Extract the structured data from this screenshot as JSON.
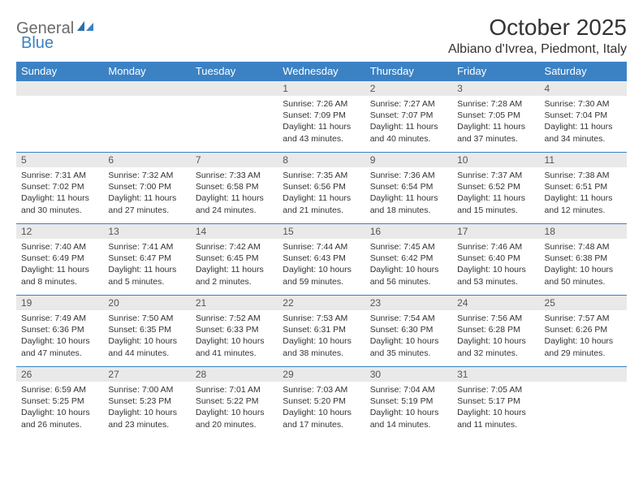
{
  "logo": {
    "part1": "General",
    "part2": "Blue"
  },
  "title": "October 2025",
  "location": "Albiano d'Ivrea, Piedmont, Italy",
  "colors": {
    "header_bg": "#3b82c4",
    "header_text": "#ffffff",
    "daynum_bg": "#e9e9e9",
    "border": "#3b82c4",
    "body_text": "#333333",
    "logo_gray": "#6a6a6a",
    "logo_blue": "#3b82c4"
  },
  "day_headers": [
    "Sunday",
    "Monday",
    "Tuesday",
    "Wednesday",
    "Thursday",
    "Friday",
    "Saturday"
  ],
  "weeks": [
    [
      {
        "num": "",
        "lines": []
      },
      {
        "num": "",
        "lines": []
      },
      {
        "num": "",
        "lines": []
      },
      {
        "num": "1",
        "lines": [
          "Sunrise: 7:26 AM",
          "Sunset: 7:09 PM",
          "Daylight: 11 hours and 43 minutes."
        ]
      },
      {
        "num": "2",
        "lines": [
          "Sunrise: 7:27 AM",
          "Sunset: 7:07 PM",
          "Daylight: 11 hours and 40 minutes."
        ]
      },
      {
        "num": "3",
        "lines": [
          "Sunrise: 7:28 AM",
          "Sunset: 7:05 PM",
          "Daylight: 11 hours and 37 minutes."
        ]
      },
      {
        "num": "4",
        "lines": [
          "Sunrise: 7:30 AM",
          "Sunset: 7:04 PM",
          "Daylight: 11 hours and 34 minutes."
        ]
      }
    ],
    [
      {
        "num": "5",
        "lines": [
          "Sunrise: 7:31 AM",
          "Sunset: 7:02 PM",
          "Daylight: 11 hours and 30 minutes."
        ]
      },
      {
        "num": "6",
        "lines": [
          "Sunrise: 7:32 AM",
          "Sunset: 7:00 PM",
          "Daylight: 11 hours and 27 minutes."
        ]
      },
      {
        "num": "7",
        "lines": [
          "Sunrise: 7:33 AM",
          "Sunset: 6:58 PM",
          "Daylight: 11 hours and 24 minutes."
        ]
      },
      {
        "num": "8",
        "lines": [
          "Sunrise: 7:35 AM",
          "Sunset: 6:56 PM",
          "Daylight: 11 hours and 21 minutes."
        ]
      },
      {
        "num": "9",
        "lines": [
          "Sunrise: 7:36 AM",
          "Sunset: 6:54 PM",
          "Daylight: 11 hours and 18 minutes."
        ]
      },
      {
        "num": "10",
        "lines": [
          "Sunrise: 7:37 AM",
          "Sunset: 6:52 PM",
          "Daylight: 11 hours and 15 minutes."
        ]
      },
      {
        "num": "11",
        "lines": [
          "Sunrise: 7:38 AM",
          "Sunset: 6:51 PM",
          "Daylight: 11 hours and 12 minutes."
        ]
      }
    ],
    [
      {
        "num": "12",
        "lines": [
          "Sunrise: 7:40 AM",
          "Sunset: 6:49 PM",
          "Daylight: 11 hours and 8 minutes."
        ]
      },
      {
        "num": "13",
        "lines": [
          "Sunrise: 7:41 AM",
          "Sunset: 6:47 PM",
          "Daylight: 11 hours and 5 minutes."
        ]
      },
      {
        "num": "14",
        "lines": [
          "Sunrise: 7:42 AM",
          "Sunset: 6:45 PM",
          "Daylight: 11 hours and 2 minutes."
        ]
      },
      {
        "num": "15",
        "lines": [
          "Sunrise: 7:44 AM",
          "Sunset: 6:43 PM",
          "Daylight: 10 hours and 59 minutes."
        ]
      },
      {
        "num": "16",
        "lines": [
          "Sunrise: 7:45 AM",
          "Sunset: 6:42 PM",
          "Daylight: 10 hours and 56 minutes."
        ]
      },
      {
        "num": "17",
        "lines": [
          "Sunrise: 7:46 AM",
          "Sunset: 6:40 PM",
          "Daylight: 10 hours and 53 minutes."
        ]
      },
      {
        "num": "18",
        "lines": [
          "Sunrise: 7:48 AM",
          "Sunset: 6:38 PM",
          "Daylight: 10 hours and 50 minutes."
        ]
      }
    ],
    [
      {
        "num": "19",
        "lines": [
          "Sunrise: 7:49 AM",
          "Sunset: 6:36 PM",
          "Daylight: 10 hours and 47 minutes."
        ]
      },
      {
        "num": "20",
        "lines": [
          "Sunrise: 7:50 AM",
          "Sunset: 6:35 PM",
          "Daylight: 10 hours and 44 minutes."
        ]
      },
      {
        "num": "21",
        "lines": [
          "Sunrise: 7:52 AM",
          "Sunset: 6:33 PM",
          "Daylight: 10 hours and 41 minutes."
        ]
      },
      {
        "num": "22",
        "lines": [
          "Sunrise: 7:53 AM",
          "Sunset: 6:31 PM",
          "Daylight: 10 hours and 38 minutes."
        ]
      },
      {
        "num": "23",
        "lines": [
          "Sunrise: 7:54 AM",
          "Sunset: 6:30 PM",
          "Daylight: 10 hours and 35 minutes."
        ]
      },
      {
        "num": "24",
        "lines": [
          "Sunrise: 7:56 AM",
          "Sunset: 6:28 PM",
          "Daylight: 10 hours and 32 minutes."
        ]
      },
      {
        "num": "25",
        "lines": [
          "Sunrise: 7:57 AM",
          "Sunset: 6:26 PM",
          "Daylight: 10 hours and 29 minutes."
        ]
      }
    ],
    [
      {
        "num": "26",
        "lines": [
          "Sunrise: 6:59 AM",
          "Sunset: 5:25 PM",
          "Daylight: 10 hours and 26 minutes."
        ]
      },
      {
        "num": "27",
        "lines": [
          "Sunrise: 7:00 AM",
          "Sunset: 5:23 PM",
          "Daylight: 10 hours and 23 minutes."
        ]
      },
      {
        "num": "28",
        "lines": [
          "Sunrise: 7:01 AM",
          "Sunset: 5:22 PM",
          "Daylight: 10 hours and 20 minutes."
        ]
      },
      {
        "num": "29",
        "lines": [
          "Sunrise: 7:03 AM",
          "Sunset: 5:20 PM",
          "Daylight: 10 hours and 17 minutes."
        ]
      },
      {
        "num": "30",
        "lines": [
          "Sunrise: 7:04 AM",
          "Sunset: 5:19 PM",
          "Daylight: 10 hours and 14 minutes."
        ]
      },
      {
        "num": "31",
        "lines": [
          "Sunrise: 7:05 AM",
          "Sunset: 5:17 PM",
          "Daylight: 10 hours and 11 minutes."
        ]
      },
      {
        "num": "",
        "lines": []
      }
    ]
  ]
}
